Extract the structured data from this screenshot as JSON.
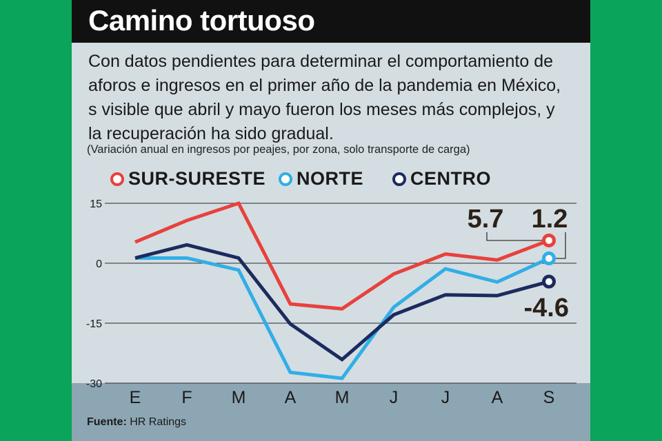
{
  "header": {
    "title": "Camino tortuoso",
    "subtitle": "Con datos pendientes para determinar el comportamiento de aforos e ingresos en el primer año de la pandemia en México, s visible que abril y mayo fueron los meses más complejos, y la recuperación ha sido gradual.",
    "note": "(Variación anual en ingresos por peajes, por zona, solo transporte de carga)"
  },
  "source": {
    "label": "Fuente:",
    "text": "HR Ratings"
  },
  "colors": {
    "sur": "#e8413c",
    "norte": "#31aee6",
    "centro": "#1c2b5e",
    "background": "#d4dde2",
    "band": "#8da6b3"
  },
  "chart_data": {
    "type": "line",
    "categories": [
      "E",
      "F",
      "M",
      "A",
      "M",
      "J",
      "J",
      "A",
      "S"
    ],
    "yticks": [
      "15",
      "0",
      "-15",
      "-30"
    ],
    "ylim": [
      -30,
      15
    ],
    "grid": "horizontal",
    "legend": "top",
    "series": [
      {
        "name": "SUR-SURESTE",
        "color": "#e8413c",
        "values": [
          5.3,
          10.7,
          15.0,
          -10.2,
          -11.4,
          -2.7,
          2.3,
          0.8,
          5.7
        ]
      },
      {
        "name": "NORTE",
        "color": "#31aee6",
        "values": [
          1.3,
          1.3,
          -1.7,
          -27.3,
          -28.8,
          -11.0,
          -1.4,
          -4.7,
          1.2
        ]
      },
      {
        "name": "CENTRO",
        "color": "#1c2b5e",
        "values": [
          1.3,
          4.6,
          1.3,
          -15.2,
          -24.1,
          -12.9,
          -7.9,
          -8.1,
          -4.6
        ]
      }
    ],
    "end_labels": [
      "5.7",
      "1.2",
      "-4.6"
    ]
  }
}
